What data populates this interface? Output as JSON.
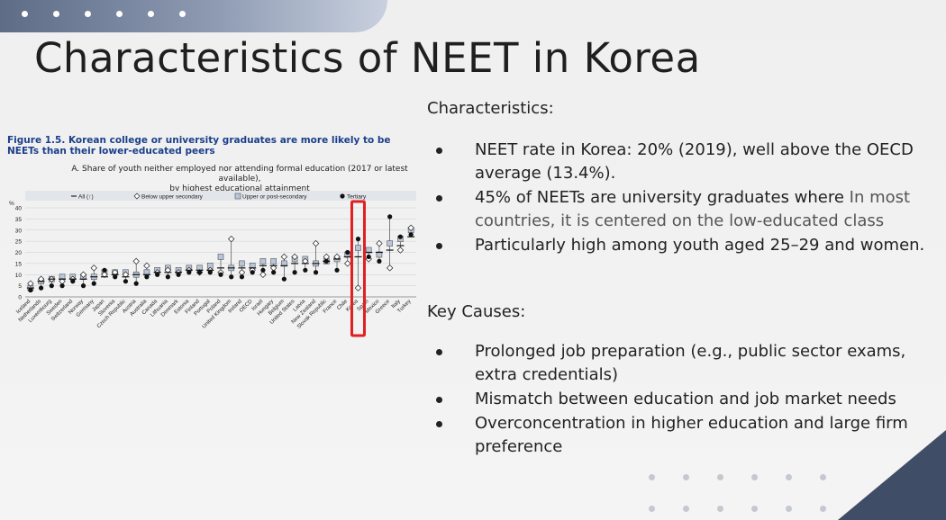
{
  "slide": {
    "title": "Characteristics of NEET in Korea",
    "accent_color": "#5f6c86",
    "corner_color": "#3f4d66"
  },
  "figure": {
    "caption": "Figure 1.5. Korean college or university graduates are more likely to be NEETs than their lower-educated peers",
    "subtitle_line1": "A. Share of youth neither employed nor attending formal education (2017 or latest available),",
    "subtitle_line2": "by highest educational attainment",
    "highlight_color": "#e02020"
  },
  "chart_data": {
    "type": "scatter",
    "ylabel": "%",
    "ylim": [
      0,
      40
    ],
    "yticks": [
      0,
      5,
      10,
      15,
      20,
      25,
      30,
      35,
      40
    ],
    "grid": true,
    "legend_position": "top",
    "highlight_category": "Korea",
    "categories": [
      "Iceland",
      "Netherlands",
      "Luxembourg",
      "Sweden",
      "Switzerland",
      "Norway",
      "Germany",
      "Japan",
      "Slovenia",
      "Czech Republic",
      "Austria",
      "Australia",
      "Canada",
      "Lithuania",
      "Denmark",
      "Estonia",
      "Finland",
      "Portugal",
      "Poland",
      "United Kingdom",
      "Ireland",
      "OECD",
      "Israel",
      "Hungary",
      "Belgium",
      "United States",
      "Latvia",
      "New Zealand",
      "Slovak Republic",
      "France",
      "Chile",
      "Korea",
      "Spain",
      "Mexico",
      "Greece",
      "Italy",
      "Turkey"
    ],
    "series": [
      {
        "name": "All (↑)",
        "marker": "dash",
        "values": [
          4,
          7,
          8,
          8,
          8,
          8,
          9,
          9,
          10,
          9,
          10,
          10,
          11,
          11,
          11,
          12,
          12,
          12,
          13,
          13,
          13,
          13,
          14,
          14,
          14,
          15,
          15,
          15,
          16,
          17,
          18,
          18,
          20,
          20,
          21,
          23,
          27
        ]
      },
      {
        "name": "Below upper secondary",
        "marker": "diamond",
        "values": [
          6,
          8,
          8,
          7,
          8,
          10,
          13,
          10,
          11,
          10,
          16,
          14,
          11,
          12,
          11,
          12,
          11,
          12,
          11,
          26,
          11,
          12,
          10,
          13,
          18,
          18,
          16,
          24,
          18,
          18,
          15,
          4,
          17,
          24,
          13,
          21,
          31
        ]
      },
      {
        "name": "Upper or post-secondary",
        "marker": "square",
        "values": [
          4,
          7,
          8,
          9,
          9,
          9,
          9,
          11,
          11,
          11,
          10,
          11,
          12,
          13,
          12,
          13,
          13,
          14,
          18,
          13,
          15,
          14,
          16,
          16,
          15,
          17,
          17,
          15,
          16,
          17,
          19,
          22,
          21,
          19,
          24,
          26,
          30
        ]
      },
      {
        "name": "Tertiary",
        "marker": "circle",
        "values": [
          3,
          4,
          5,
          5,
          7,
          5,
          6,
          12,
          9,
          7,
          6,
          9,
          10,
          9,
          10,
          11,
          11,
          11,
          10,
          9,
          9,
          11,
          12,
          11,
          8,
          11,
          12,
          11,
          16,
          12,
          20,
          26,
          18,
          16,
          36,
          27,
          28
        ]
      }
    ]
  },
  "characteristics": {
    "heading": "Characteristics:",
    "items": [
      {
        "text": "NEET rate in Korea: 20% (2019), well above the OECD average (13.4%).",
        "muted": ""
      },
      {
        "text": "45% of NEETs are university graduates where ",
        "muted": "In most countries, it is centered on the low-educated class"
      },
      {
        "text": "Particularly high among youth aged 25–29 and women.",
        "muted": ""
      }
    ]
  },
  "causes": {
    "heading": "Key Causes:",
    "items": [
      "Prolonged job preparation (e.g., public sector exams, extra credentials)",
      "Mismatch between education and job market needs",
      "Overconcentration in higher education and large firm preference"
    ]
  }
}
